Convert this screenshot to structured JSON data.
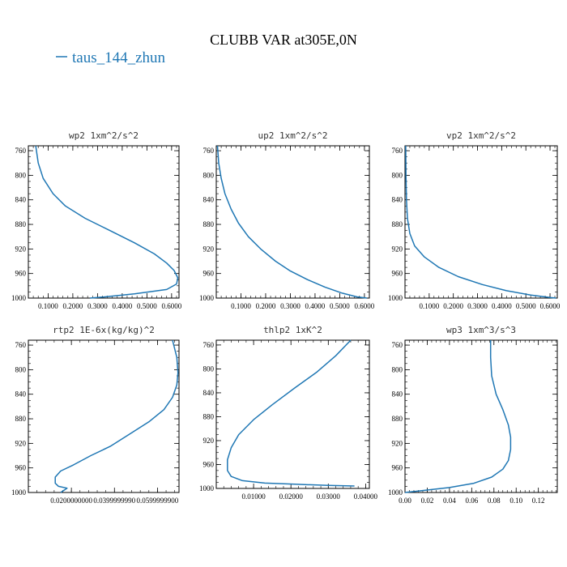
{
  "figure": {
    "title": "CLUBB VAR at305E,0N",
    "legend_label": "taus_144_zhun",
    "line_color": "#1f77b4"
  },
  "chart_data": [
    {
      "type": "line",
      "title": "wp2  1xm^2/s^2",
      "xlim": [
        0.02,
        0.63
      ],
      "ylim": [
        1000,
        752
      ],
      "y_inverted": true,
      "xticks": [
        0.1,
        0.2,
        0.3,
        0.4,
        0.5,
        0.6
      ],
      "xtick_labels": [
        "0.1000",
        "0.2000",
        "0.3000",
        "0.4000",
        "0.5000",
        "0.6000"
      ],
      "yticks": [
        760,
        800,
        840,
        880,
        920,
        960,
        1000
      ],
      "ytick_labels": [
        "760",
        "800",
        "840",
        "880",
        "920",
        "960",
        "1000"
      ],
      "series": [
        {
          "x": [
            0.05,
            0.06,
            0.08,
            0.12,
            0.17,
            0.25,
            0.35,
            0.45,
            0.53,
            0.58,
            0.61,
            0.625,
            0.62,
            0.58,
            0.45,
            0.33,
            0.27
          ],
          "y": [
            752,
            780,
            805,
            830,
            850,
            870,
            890,
            910,
            928,
            943,
            955,
            967,
            977,
            986,
            993,
            998,
            1000
          ]
        }
      ]
    },
    {
      "type": "line",
      "title": "up2  1xm^2/s^2",
      "xlim": [
        0.0,
        0.62
      ],
      "ylim": [
        1000,
        752
      ],
      "y_inverted": true,
      "xticks": [
        0.1,
        0.2,
        0.3,
        0.4,
        0.5,
        0.6
      ],
      "xtick_labels": [
        "0.1000",
        "0.2000",
        "0.3000",
        "0.4000",
        "0.5000",
        "0.6000"
      ],
      "yticks": [
        760,
        800,
        840,
        880,
        920,
        960,
        1000
      ],
      "ytick_labels": [
        "760",
        "800",
        "840",
        "880",
        "920",
        "960",
        "1000"
      ],
      "series": [
        {
          "x": [
            0.005,
            0.01,
            0.02,
            0.035,
            0.06,
            0.09,
            0.13,
            0.18,
            0.24,
            0.3,
            0.37,
            0.44,
            0.51,
            0.57,
            0.61
          ],
          "y": [
            752,
            780,
            805,
            830,
            855,
            878,
            900,
            920,
            940,
            956,
            970,
            982,
            992,
            998,
            1000
          ]
        }
      ]
    },
    {
      "type": "line",
      "title": "vp2  1xm^2/s^2",
      "xlim": [
        0.0,
        0.63
      ],
      "ylim": [
        1000,
        752
      ],
      "y_inverted": true,
      "xticks": [
        0.1,
        0.2,
        0.3,
        0.4,
        0.5,
        0.6
      ],
      "xtick_labels": [
        "0.1000",
        "0.2000",
        "0.3000",
        "0.4000",
        "0.5000",
        "0.6000"
      ],
      "yticks": [
        760,
        800,
        840,
        880,
        920,
        960,
        1000
      ],
      "ytick_labels": [
        "760",
        "800",
        "840",
        "880",
        "920",
        "960",
        "1000"
      ],
      "series": [
        {
          "x": [
            0.003,
            0.004,
            0.006,
            0.01,
            0.02,
            0.04,
            0.08,
            0.14,
            0.22,
            0.32,
            0.42,
            0.52,
            0.6,
            0.625
          ],
          "y": [
            752,
            800,
            840,
            870,
            895,
            915,
            933,
            950,
            965,
            978,
            988,
            995,
            999,
            1000
          ]
        }
      ]
    },
    {
      "type": "line",
      "title": "rtp2  1E-6x(kg/kg)^2",
      "xlim": [
        0.0,
        0.07
      ],
      "ylim": [
        1000,
        752
      ],
      "y_inverted": true,
      "xticks": [
        0.02,
        0.04,
        0.06
      ],
      "xtick_labels": [
        "0.0200000000",
        "0.0399999990",
        "0.0599999900"
      ],
      "yticks": [
        760,
        800,
        840,
        880,
        920,
        960,
        1000
      ],
      "ytick_labels": [
        "760",
        "800",
        "840",
        "880",
        "920",
        "960",
        "1000"
      ],
      "series": [
        {
          "x": [
            0.067,
            0.069,
            0.0695,
            0.069,
            0.067,
            0.063,
            0.056,
            0.047,
            0.038,
            0.029,
            0.021,
            0.015,
            0.0125,
            0.0125,
            0.014,
            0.018,
            0.015
          ],
          "y": [
            752,
            780,
            805,
            825,
            845,
            865,
            885,
            905,
            925,
            940,
            955,
            965,
            975,
            985,
            990,
            993,
            1000
          ]
        }
      ]
    },
    {
      "type": "line",
      "title": "thlp2  1xK^2",
      "xlim": [
        0.0,
        0.041
      ],
      "ylim": [
        1000,
        752
      ],
      "y_inverted": true,
      "xticks": [
        0.01,
        0.02,
        0.03,
        0.04
      ],
      "xtick_labels": [
        "0.01000",
        "0.02000",
        "0.03000",
        "0.04000"
      ],
      "yticks": [
        760,
        800,
        840,
        880,
        920,
        960,
        1000
      ],
      "ytick_labels": [
        "760",
        "800",
        "840",
        "880",
        "920",
        "960",
        "1000"
      ],
      "series": [
        {
          "x": [
            0.036,
            0.032,
            0.027,
            0.021,
            0.015,
            0.01,
            0.006,
            0.004,
            0.003,
            0.003,
            0.004,
            0.007,
            0.013,
            0.021,
            0.03,
            0.037
          ],
          "y": [
            752,
            778,
            805,
            832,
            860,
            885,
            910,
            932,
            952,
            970,
            980,
            987,
            991,
            993,
            995,
            996
          ]
        }
      ]
    },
    {
      "type": "line",
      "title": "wp3  1xm^3/s^3",
      "xlim": [
        0.0,
        0.137
      ],
      "ylim": [
        1000,
        752
      ],
      "y_inverted": true,
      "xticks": [
        0.0,
        0.02,
        0.04,
        0.06,
        0.08,
        0.1,
        0.12
      ],
      "xtick_labels": [
        "0.00",
        "0.02",
        "0.04",
        "0.06",
        "0.08",
        "0.10",
        "0.12"
      ],
      "yticks": [
        760,
        800,
        840,
        880,
        920,
        960,
        1000
      ],
      "ytick_labels": [
        "760",
        "800",
        "840",
        "880",
        "920",
        "960",
        "1000"
      ],
      "series": [
        {
          "x": [
            0.077,
            0.077,
            0.078,
            0.082,
            0.088,
            0.093,
            0.095,
            0.095,
            0.093,
            0.088,
            0.078,
            0.062,
            0.04,
            0.015,
            0.0
          ],
          "y": [
            752,
            780,
            810,
            840,
            865,
            890,
            910,
            930,
            948,
            962,
            975,
            985,
            992,
            997,
            1000
          ]
        }
      ]
    }
  ]
}
